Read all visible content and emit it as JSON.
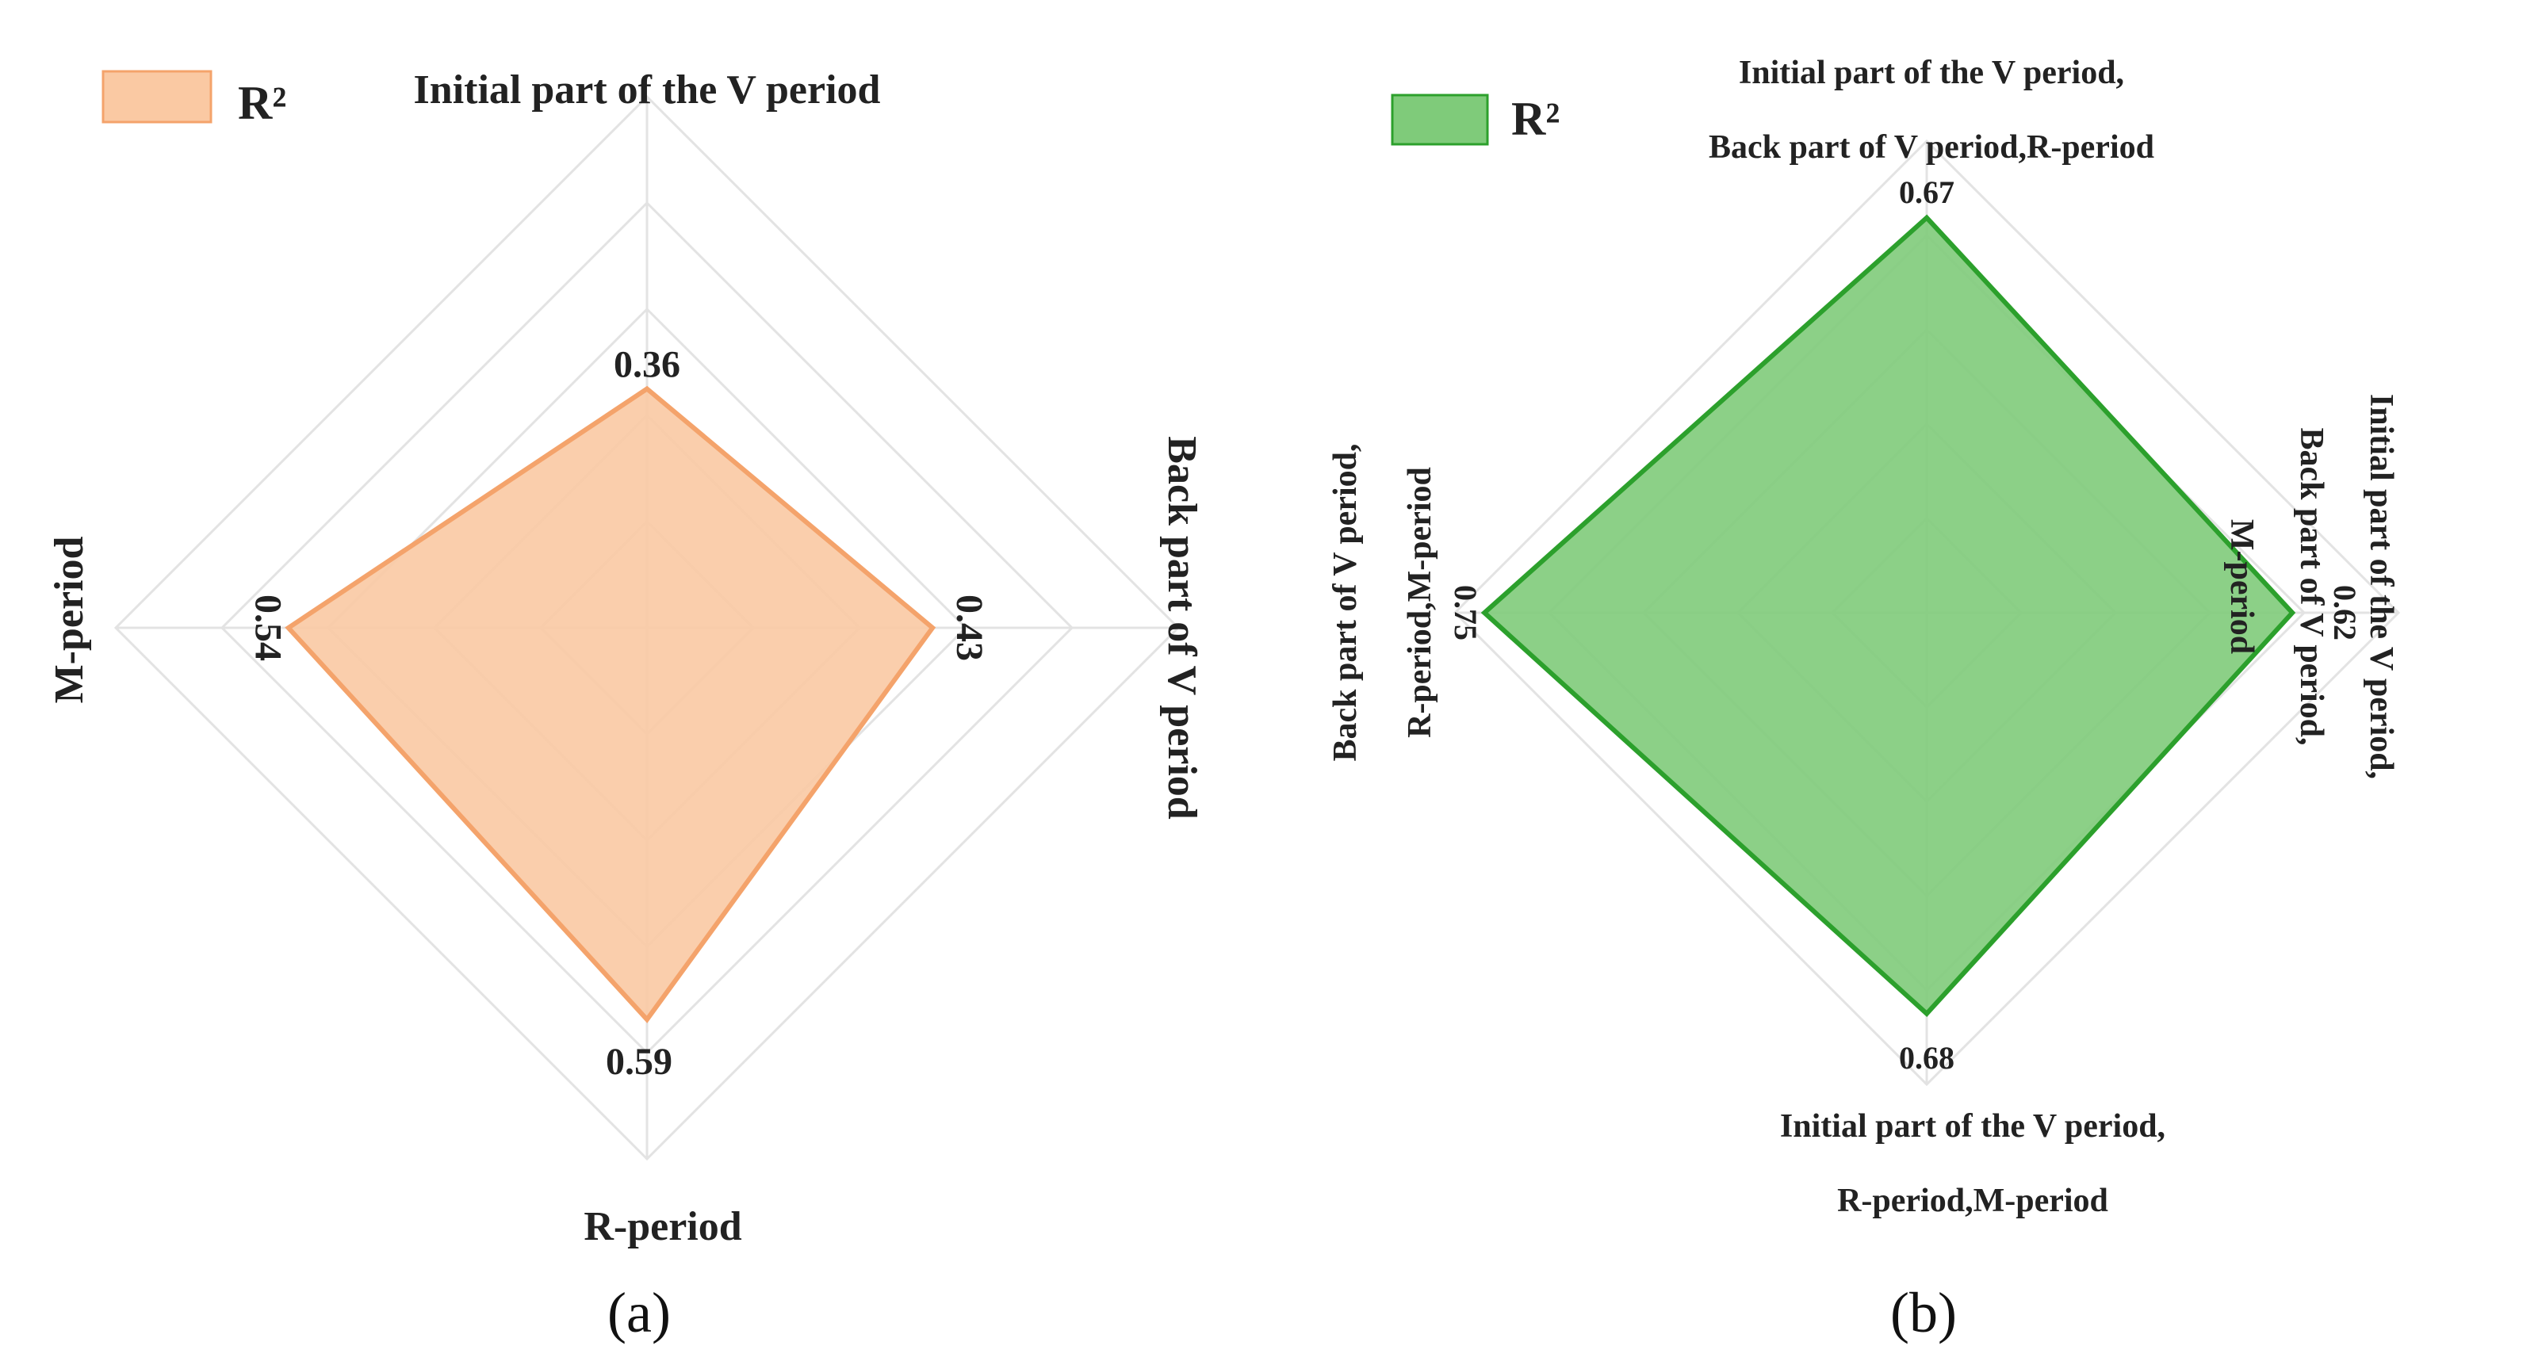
{
  "chart_data": [
    {
      "type": "radar",
      "panel": "(a)",
      "legend": "R²",
      "axes": [
        "Initial part of the V period",
        "Back part of V period",
        "R-period",
        "M-period"
      ],
      "values": [
        0.36,
        0.43,
        0.59,
        0.54
      ],
      "value_labels": [
        "0.36",
        "0.43",
        "0.59",
        "0.54"
      ],
      "range": [
        0,
        0.8
      ],
      "grid": true,
      "legend_position": "top-left",
      "color": "#f4a36b",
      "fill_color": "#fac9a3"
    },
    {
      "type": "radar",
      "panel": "(b)",
      "legend": "R²",
      "axes": [
        [
          "Initial part of the V period,",
          "Back part of V period,R-period"
        ],
        [
          "Initial part of the V period,",
          "Back part of V period,",
          "M-period"
        ],
        [
          "Initial part of the V period,",
          "R-period,M-period"
        ],
        [
          "Back part of V period,",
          "R-period,M-period"
        ]
      ],
      "values": [
        0.67,
        0.62,
        0.68,
        0.75
      ],
      "value_labels": [
        "0.67",
        "0.62",
        "0.68",
        "0.75"
      ],
      "range": [
        0,
        0.8
      ],
      "grid": true,
      "legend_position": "top-left",
      "color": "#2ca02c",
      "fill_color": "#7fcb7a"
    }
  ]
}
